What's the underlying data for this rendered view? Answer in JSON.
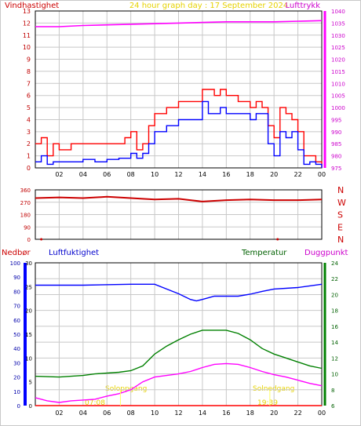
{
  "title": "24 hour graph day : 17 September 2024",
  "hour_ticks": [
    "02",
    "04",
    "06",
    "08",
    "10",
    "12",
    "14",
    "16",
    "18",
    "20",
    "22",
    "00"
  ],
  "colors": {
    "wind_gust": "#ff0000",
    "wind_avg": "#0000ff",
    "pressure": "#ff00ff",
    "direction": "#cc0000",
    "humidity": "#0000ff",
    "temperature": "#008000",
    "dewpoint": "#ff00ff",
    "rain": "#ff0000",
    "sunrise_sunset": "#ffff66",
    "grid": "#c8c8c8"
  },
  "chart_data": [
    {
      "type": "line",
      "name": "wind_pressure",
      "left_label": "Vindhastighet",
      "right_label": "Lufttrykk",
      "x_unit": "hour",
      "x_range": [
        0,
        24
      ],
      "y_left": {
        "ticks": [
          "0",
          "1",
          "2",
          "3",
          "4",
          "5",
          "6",
          "7",
          "8",
          "9",
          "10",
          "11",
          "12",
          "13"
        ],
        "range": [
          0,
          13
        ]
      },
      "y_right": {
        "ticks": [
          "975",
          "980",
          "985",
          "990",
          "995",
          "1000",
          "1005",
          "1010",
          "1015",
          "1020",
          "1025",
          "1030",
          "1035",
          "1040"
        ],
        "range": [
          975,
          1040
        ]
      },
      "series": [
        {
          "key": "gust",
          "axis": "left",
          "points": [
            [
              0,
              2
            ],
            [
              0.5,
              2.5
            ],
            [
              1,
              1
            ],
            [
              1.5,
              2
            ],
            [
              2,
              1.5
            ],
            [
              3,
              2
            ],
            [
              4,
              2
            ],
            [
              5,
              2
            ],
            [
              6,
              2
            ],
            [
              6.5,
              2
            ],
            [
              7,
              2
            ],
            [
              7.5,
              2.5
            ],
            [
              8,
              3
            ],
            [
              8.5,
              1.5
            ],
            [
              9,
              2
            ],
            [
              9.5,
              3.5
            ],
            [
              10,
              4.5
            ],
            [
              10.5,
              4.5
            ],
            [
              11,
              5
            ],
            [
              12,
              5.5
            ],
            [
              13,
              5.5
            ],
            [
              13.5,
              5.5
            ],
            [
              14,
              6.5
            ],
            [
              14.5,
              6.5
            ],
            [
              15,
              6
            ],
            [
              15.5,
              6.5
            ],
            [
              16,
              6
            ],
            [
              16.5,
              6
            ],
            [
              17,
              5.5
            ],
            [
              17.5,
              5.5
            ],
            [
              18,
              5
            ],
            [
              18.5,
              5.5
            ],
            [
              19,
              5
            ],
            [
              19.5,
              3.5
            ],
            [
              20,
              2.5
            ],
            [
              20.5,
              5
            ],
            [
              21,
              4.5
            ],
            [
              21.5,
              4
            ],
            [
              22,
              3
            ],
            [
              22.5,
              1
            ],
            [
              23,
              1
            ],
            [
              23.5,
              0.5
            ],
            [
              24,
              0
            ]
          ]
        },
        {
          "key": "average",
          "axis": "left",
          "points": [
            [
              0,
              0.5
            ],
            [
              0.5,
              1
            ],
            [
              1,
              0.3
            ],
            [
              1.5,
              0.5
            ],
            [
              2,
              0.5
            ],
            [
              3,
              0.5
            ],
            [
              4,
              0.7
            ],
            [
              5,
              0.5
            ],
            [
              6,
              0.7
            ],
            [
              7,
              0.8
            ],
            [
              8,
              1.2
            ],
            [
              8.5,
              0.8
            ],
            [
              9,
              1.2
            ],
            [
              9.5,
              2
            ],
            [
              10,
              3
            ],
            [
              10.5,
              3
            ],
            [
              11,
              3.5
            ],
            [
              12,
              4
            ],
            [
              13,
              4
            ],
            [
              13.5,
              4
            ],
            [
              14,
              5.5
            ],
            [
              14.5,
              4.5
            ],
            [
              15,
              4.5
            ],
            [
              15.5,
              5
            ],
            [
              16,
              4.5
            ],
            [
              16.5,
              4.5
            ],
            [
              17,
              4.5
            ],
            [
              17.5,
              4.5
            ],
            [
              18,
              4
            ],
            [
              18.5,
              4.5
            ],
            [
              19,
              4.5
            ],
            [
              19.5,
              2
            ],
            [
              20,
              1
            ],
            [
              20.5,
              3
            ],
            [
              21,
              2.5
            ],
            [
              21.5,
              3
            ],
            [
              22,
              1.5
            ],
            [
              22.5,
              0.3
            ],
            [
              23,
              0.5
            ],
            [
              23.5,
              0.3
            ],
            [
              24,
              0
            ]
          ]
        },
        {
          "key": "pressure",
          "axis": "right",
          "points": [
            [
              0,
              1033.5
            ],
            [
              2,
              1033.5
            ],
            [
              4,
              1034
            ],
            [
              8,
              1034.5
            ],
            [
              12,
              1035
            ],
            [
              16,
              1035.5
            ],
            [
              20,
              1035.5
            ],
            [
              24,
              1036
            ]
          ]
        }
      ]
    },
    {
      "type": "scatter",
      "name": "wind_direction",
      "y_left": {
        "ticks": [
          "0",
          "90",
          "180",
          "270",
          "360"
        ],
        "range": [
          0,
          360
        ]
      },
      "y_right_labels": [
        "N",
        "W",
        "S",
        "E",
        "N"
      ],
      "series": [
        {
          "key": "direction",
          "points": [
            [
              0,
              300
            ],
            [
              2,
              305
            ],
            [
              4,
              300
            ],
            [
              6,
              310
            ],
            [
              8,
              300
            ],
            [
              10,
              290
            ],
            [
              12,
              295
            ],
            [
              14,
              275
            ],
            [
              16,
              285
            ],
            [
              18,
              290
            ],
            [
              20,
              285
            ],
            [
              22,
              285
            ],
            [
              24,
              290
            ]
          ]
        },
        {
          "key": "calm",
          "points": [
            [
              0.5,
              0
            ],
            [
              20.3,
              0
            ]
          ]
        }
      ]
    },
    {
      "type": "line",
      "name": "humidity_temperature",
      "labels": {
        "rain": "Nedbør",
        "humidity": "Luftfuktighet",
        "temperature": "Temperatur",
        "dewpoint": "Duggpunkt"
      },
      "y_rain": {
        "ticks": [
          "0",
          "10",
          "20",
          "30",
          "40",
          "50",
          "60",
          "70",
          "80",
          "90",
          "100"
        ],
        "range": [
          0,
          100
        ]
      },
      "y_hum": {
        "ticks": [
          "0",
          "5",
          "10",
          "15",
          "20",
          "25",
          "30"
        ],
        "range": [
          0,
          30
        ]
      },
      "y_temp": {
        "ticks": [
          "6",
          "8",
          "10",
          "12",
          "14",
          "16",
          "18",
          "20",
          "22",
          "24"
        ],
        "range": [
          6,
          24
        ]
      },
      "annotations": {
        "sunrise": "Soloppgang",
        "sunset": "Solnedgang",
        "sunrise_time": "07:08",
        "sunset_time": "19:39",
        "sunrise_hour": 7.13,
        "sunset_hour": 19.65
      },
      "series": [
        {
          "key": "humidity",
          "axis": "hum",
          "points": [
            [
              0,
              25.3
            ],
            [
              4,
              25.3
            ],
            [
              8,
              25.5
            ],
            [
              10,
              25.5
            ],
            [
              11,
              24.5
            ],
            [
              12,
              23.5
            ],
            [
              13,
              22.3
            ],
            [
              13.5,
              22
            ],
            [
              14,
              22.3
            ],
            [
              15,
              23
            ],
            [
              16,
              23
            ],
            [
              17,
              23
            ],
            [
              18,
              23.4
            ],
            [
              19,
              24
            ],
            [
              20,
              24.5
            ],
            [
              22,
              24.8
            ],
            [
              24,
              25.5
            ]
          ]
        },
        {
          "key": "temperature",
          "axis": "temp",
          "points": [
            [
              0,
              9.7
            ],
            [
              2,
              9.6
            ],
            [
              4,
              9.8
            ],
            [
              5,
              10
            ],
            [
              7,
              10.2
            ],
            [
              8,
              10.4
            ],
            [
              9,
              11
            ],
            [
              10,
              12.5
            ],
            [
              11,
              13.5
            ],
            [
              12,
              14.3
            ],
            [
              13,
              15
            ],
            [
              14,
              15.5
            ],
            [
              15,
              15.5
            ],
            [
              16,
              15.5
            ],
            [
              17,
              15.1
            ],
            [
              18,
              14.3
            ],
            [
              19,
              13.2
            ],
            [
              20,
              12.5
            ],
            [
              21,
              12
            ],
            [
              22,
              11.5
            ],
            [
              23,
              11
            ],
            [
              24,
              10.7
            ]
          ]
        },
        {
          "key": "dewpoint",
          "axis": "temp",
          "points": [
            [
              0,
              7
            ],
            [
              1,
              6.6
            ],
            [
              2,
              6.4
            ],
            [
              3,
              6.6
            ],
            [
              5,
              6.8
            ],
            [
              6,
              7.2
            ],
            [
              7,
              7.5
            ],
            [
              8,
              8
            ],
            [
              9,
              9
            ],
            [
              10,
              9.6
            ],
            [
              11,
              9.8
            ],
            [
              12,
              10
            ],
            [
              13,
              10.3
            ],
            [
              14,
              10.8
            ],
            [
              15,
              11.2
            ],
            [
              16,
              11.3
            ],
            [
              17,
              11.2
            ],
            [
              18,
              10.8
            ],
            [
              19,
              10.3
            ],
            [
              20,
              9.9
            ],
            [
              21,
              9.6
            ],
            [
              22,
              9.2
            ],
            [
              23,
              8.8
            ],
            [
              24,
              8.5
            ]
          ]
        },
        {
          "key": "rain",
          "axis": "rain",
          "points": [
            [
              0,
              0
            ],
            [
              24,
              0
            ]
          ]
        }
      ]
    }
  ]
}
